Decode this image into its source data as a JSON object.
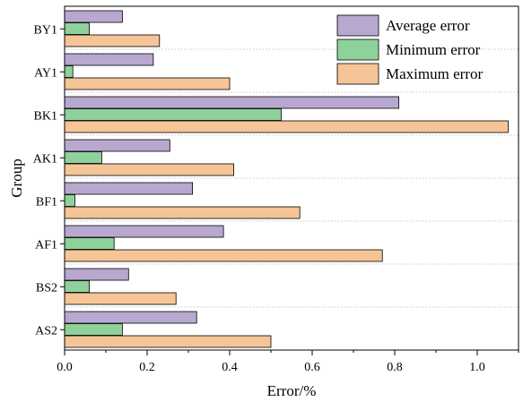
{
  "chart_data": {
    "type": "bar",
    "orientation": "horizontal",
    "title": "",
    "xlabel": "Error/%",
    "ylabel": "Group",
    "xlim": [
      0,
      1.1
    ],
    "xticks": [
      0.0,
      0.2,
      0.4,
      0.6,
      0.8,
      1.0
    ],
    "xtick_labels": [
      "0.0",
      "0.2",
      "0.4",
      "0.6",
      "0.8",
      "1.0"
    ],
    "grid": "horizontal dotted separators",
    "legend_position": "top-right",
    "categories": [
      "BY1",
      "AY1",
      "BK1",
      "AK1",
      "BF1",
      "AF1",
      "BS2",
      "AS2"
    ],
    "series": [
      {
        "name": "Average error",
        "color": "#b8a8d0",
        "values": [
          0.14,
          0.215,
          0.81,
          0.255,
          0.31,
          0.385,
          0.155,
          0.32
        ]
      },
      {
        "name": "Minimum error",
        "color": "#8fd19a",
        "values": [
          0.06,
          0.02,
          0.525,
          0.09,
          0.025,
          0.12,
          0.06,
          0.14
        ]
      },
      {
        "name": "Maximum error",
        "color": "#f5c497",
        "values": [
          0.23,
          0.4,
          1.075,
          0.41,
          0.57,
          0.77,
          0.27,
          0.5
        ]
      }
    ]
  }
}
